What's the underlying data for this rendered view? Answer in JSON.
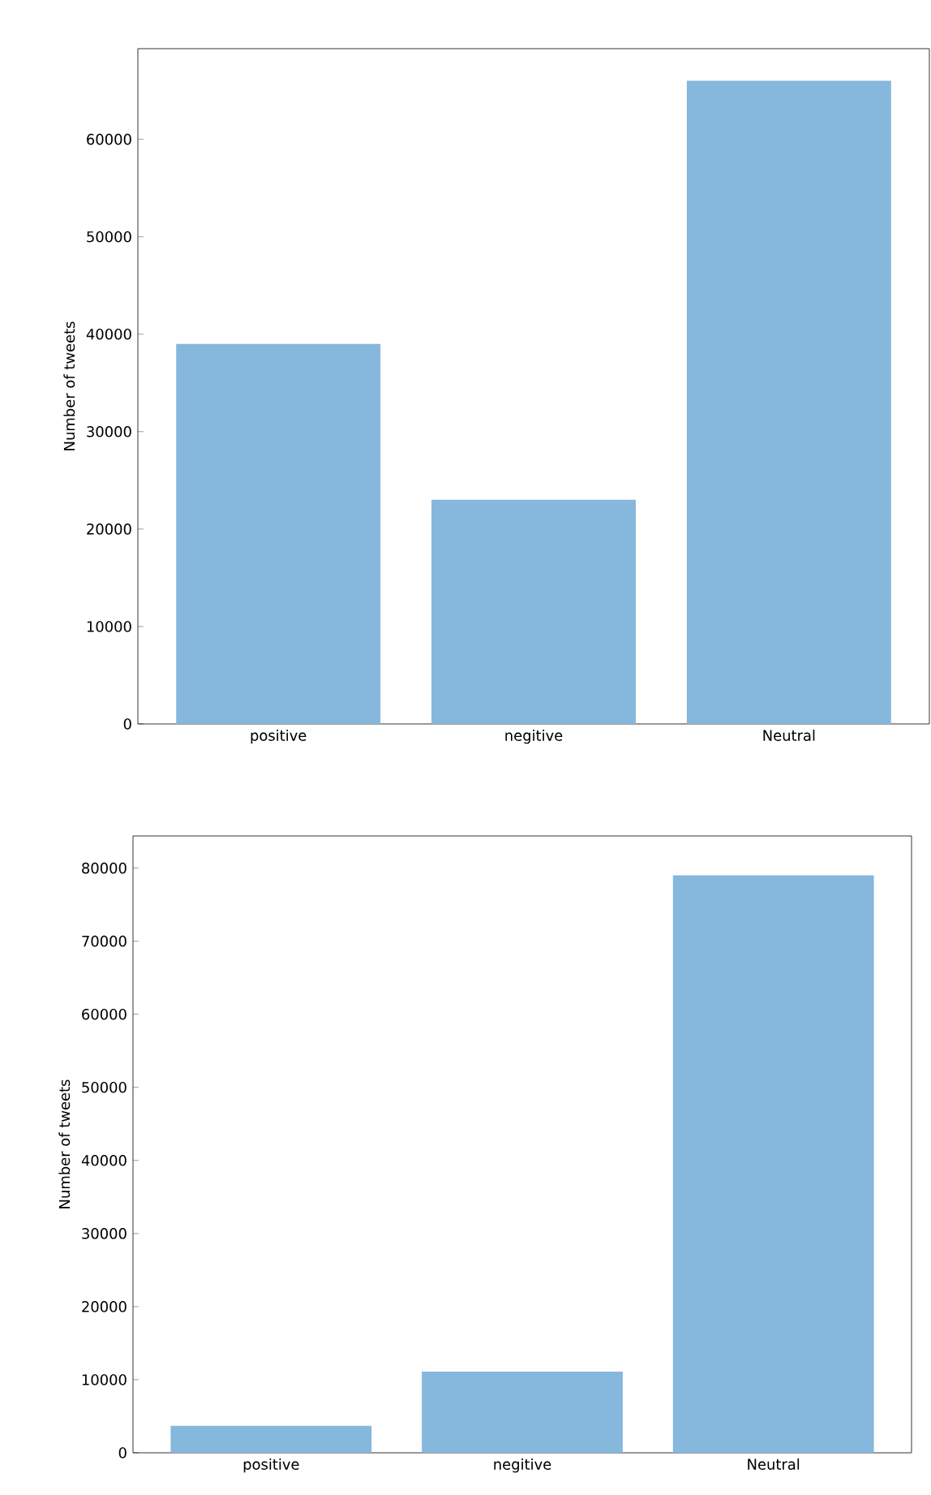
{
  "chart_data": [
    {
      "type": "bar",
      "categories": [
        "positive",
        "negitive",
        "Neutral"
      ],
      "values": [
        39000,
        23000,
        66000
      ],
      "color": "#86b7dc",
      "ylabel": "Number of tweets",
      "ylim": [
        0,
        69300
      ],
      "yticks": [
        0,
        10000,
        20000,
        30000,
        40000,
        50000,
        60000
      ]
    },
    {
      "type": "bar",
      "categories": [
        "positive",
        "negitive",
        "Neutral"
      ],
      "values": [
        3700,
        11100,
        79000
      ],
      "color": "#86b7dc",
      "ylabel": "Number of tweets",
      "ylim": [
        0,
        84400
      ],
      "yticks": [
        0,
        10000,
        20000,
        30000,
        40000,
        50000,
        60000,
        70000,
        80000
      ]
    }
  ]
}
